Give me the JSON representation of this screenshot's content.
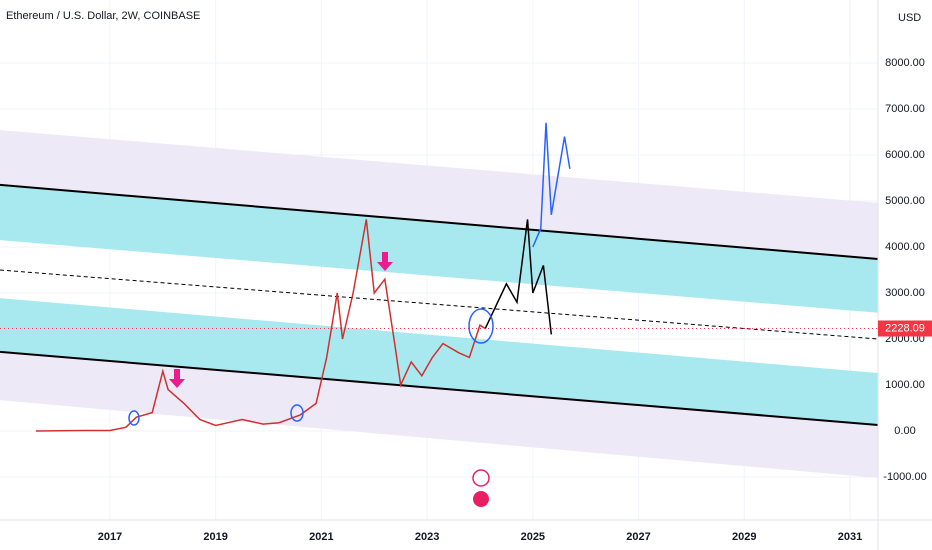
{
  "chart_data": {
    "type": "line",
    "title": "Ethereum / U.S. Dollar, 2W, COINBASE",
    "currency": "USD",
    "xlim": [
      2014.92,
      2031.53
    ],
    "ylim": [
      -1935,
      9370
    ],
    "xticks": [
      2017,
      2019,
      2021,
      2023,
      2025,
      2027,
      2029,
      2031
    ],
    "yticks": [
      {
        "value": -1000,
        "label": "-1000.00"
      },
      {
        "value": 0,
        "label": "0.00"
      },
      {
        "value": 1000,
        "label": "1000.00"
      },
      {
        "value": 2000,
        "label": "2000.00"
      },
      {
        "value": 3000,
        "label": "3000.00"
      },
      {
        "value": 4000,
        "label": "4000.00"
      },
      {
        "value": 5000,
        "label": "5000.00"
      },
      {
        "value": 6000,
        "label": "6000.00"
      },
      {
        "value": 7000,
        "label": "7000.00"
      },
      {
        "value": 8000,
        "label": "8000.00"
      }
    ],
    "grid": true,
    "last_price": 2228.09,
    "last_price_color": "#f23645",
    "bands": [
      {
        "color": "#ede9f6",
        "upper": [
          6540,
          4960
        ],
        "lower": [
          5350,
          3740
        ]
      },
      {
        "color": "#a8e9f0",
        "upper": [
          5350,
          3740
        ],
        "lower": [
          4150,
          2570
        ]
      },
      {
        "color": "#a8e9f0",
        "upper": [
          2890,
          1260
        ],
        "lower": [
          1720,
          130
        ]
      },
      {
        "color": "#ede9f6",
        "upper": [
          1720,
          130
        ],
        "lower": [
          670,
          -1020
        ]
      }
    ],
    "channel_lines": [
      {
        "color": "#000000",
        "dash": false,
        "values": [
          5350,
          3740
        ]
      },
      {
        "color": "#000000",
        "dash": true,
        "values": [
          3500,
          2000
        ]
      },
      {
        "color": "#000000",
        "dash": false,
        "values": [
          1720,
          130
        ]
      }
    ],
    "series": [
      {
        "color": "#d32f2f",
        "x": [
          2015.6,
          2016.5,
          2017.0,
          2017.3,
          2017.5,
          2017.8,
          2018.0,
          2018.1,
          2018.3,
          2018.4,
          2018.7,
          2019.0,
          2019.5,
          2019.9,
          2020.2,
          2020.6,
          2020.9,
          2021.1,
          2021.3,
          2021.4,
          2021.6,
          2021.85,
          2022.0,
          2022.2,
          2022.4,
          2022.5,
          2022.7,
          2022.9,
          2023.1,
          2023.3,
          2023.6,
          2023.8,
          2024.0,
          2024.1
        ],
        "values": [
          0,
          10,
          10,
          80,
          300,
          400,
          1300,
          900,
          700,
          600,
          250,
          120,
          250,
          150,
          180,
          350,
          600,
          1600,
          3000,
          2000,
          3000,
          4600,
          3000,
          3300,
          1800,
          1000,
          1500,
          1200,
          1600,
          1900,
          1700,
          1600,
          2300,
          2228
        ]
      },
      {
        "color": "#000000",
        "x": [
          2024.1,
          2024.5,
          2024.7,
          2024.9,
          2025.0,
          2025.2,
          2025.35
        ],
        "values": [
          2228,
          3200,
          2800,
          4600,
          3000,
          3600,
          2100
        ]
      },
      {
        "color": "#2962ff",
        "x": [
          2025.0,
          2025.15,
          2025.25,
          2025.35,
          2025.6,
          2025.7
        ],
        "values": [
          4000,
          4400,
          6700,
          4700,
          6400,
          5700
        ]
      }
    ]
  }
}
